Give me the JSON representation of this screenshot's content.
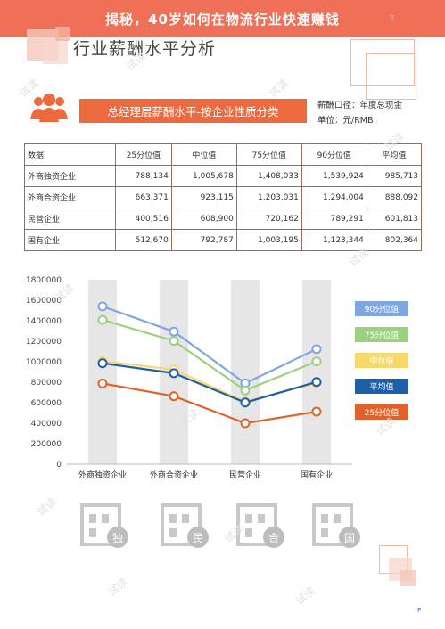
{
  "banner": {
    "title": "揭秘，40岁如何在物流行业快速赚钱",
    "corner_mark": "☆"
  },
  "page": {
    "title": "行业薪酬水平分析",
    "page_number": "P"
  },
  "section": {
    "heading": "总经理层薪酬水平-按企业性质分类",
    "note_caliber": "薪酬口径：年度总现金",
    "note_unit": "单位：元/RMB"
  },
  "table": {
    "headers": [
      "数据",
      "25分位值",
      "中位值",
      "75分位值",
      "90分位值",
      "平均值"
    ],
    "rows": [
      [
        "外商独资企业",
        "788,134",
        "1,005,678",
        "1,408,033",
        "1,539,924",
        "985,713"
      ],
      [
        "外商合资企业",
        "663,371",
        "923,115",
        "1,203,031",
        "1,294,004",
        "888,092"
      ],
      [
        "民营企业",
        "400,516",
        "608,900",
        "720,162",
        "789,291",
        "601,813"
      ],
      [
        "国有企业",
        "512,670",
        "792,787",
        "1,003,195",
        "1,123,344",
        "802,364"
      ]
    ]
  },
  "chart_data": {
    "type": "line",
    "categories": [
      "外商独资企业",
      "外商合资企业",
      "民营企业",
      "国有企业"
    ],
    "ylim": [
      0,
      1800000
    ],
    "yticks": [
      "0",
      "200000",
      "400000",
      "600000",
      "800000",
      "1000000",
      "1200000",
      "1400000",
      "1600000",
      "1800000"
    ],
    "grid": false,
    "legend_position": "right",
    "series": [
      {
        "name": "90分位值",
        "color": "#7ea6e0",
        "values": [
          1539924,
          1294004,
          789291,
          1123344
        ]
      },
      {
        "name": "75分位值",
        "color": "#9ccf7e",
        "values": [
          1408033,
          1203031,
          720162,
          1003195
        ]
      },
      {
        "name": "中位值",
        "color": "#f7d96b",
        "values": [
          1005678,
          923115,
          608900,
          792787
        ]
      },
      {
        "name": "平均值",
        "color": "#1f5fa8",
        "values": [
          985713,
          888092,
          601813,
          802364
        ]
      },
      {
        "name": "25分位值",
        "color": "#e0622b",
        "values": [
          788134,
          663371,
          400516,
          512670
        ]
      }
    ]
  },
  "footer_icons": [
    {
      "name": "foreign-owned-building-icon",
      "badge": "独"
    },
    {
      "name": "private-building-icon",
      "badge": "民"
    },
    {
      "name": "joint-venture-building-icon",
      "badge": "合"
    },
    {
      "name": "state-owned-building-icon",
      "badge": "国"
    }
  ],
  "colors": {
    "accent": "#ec6a3d",
    "banner": "#ef6f57",
    "table_border": "#9c6a52"
  },
  "watermark": "试读"
}
